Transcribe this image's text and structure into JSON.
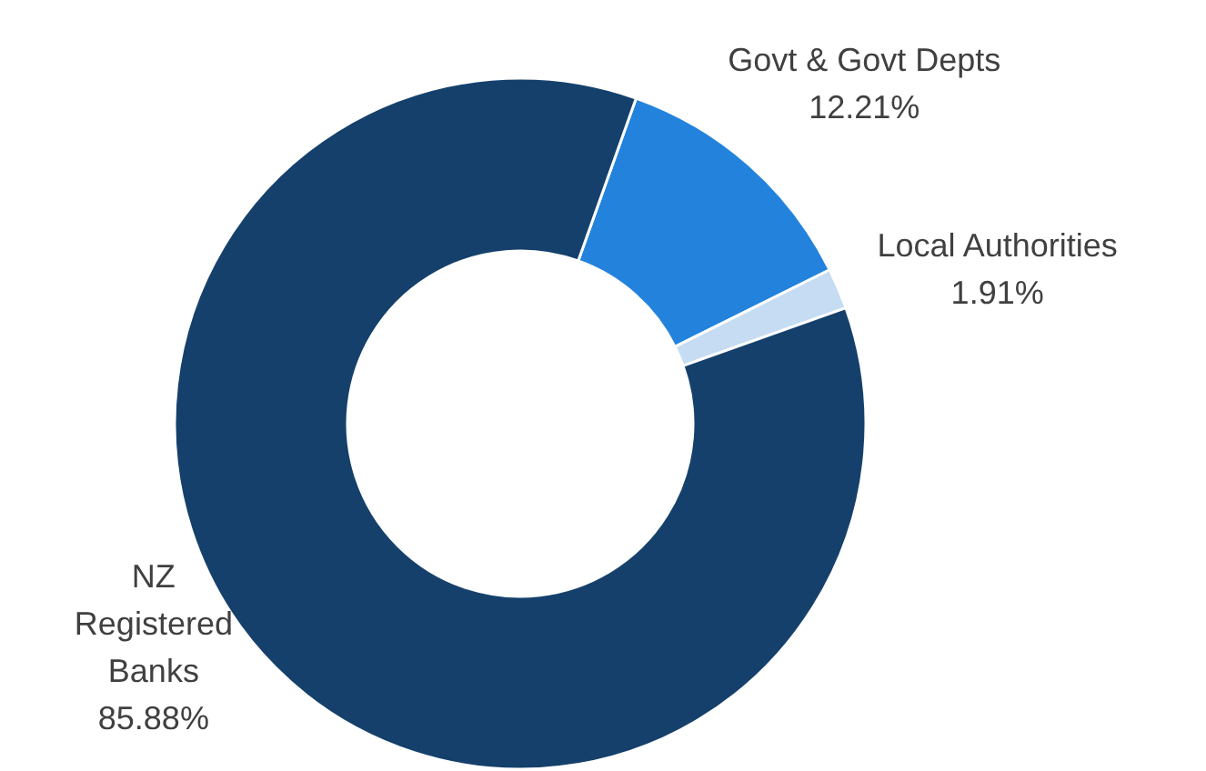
{
  "chart_data": {
    "type": "donut",
    "categories": [
      "Govt & Govt Depts",
      "Local Authorities",
      "NZ Registered Banks"
    ],
    "values": [
      12.21,
      1.91,
      85.88
    ],
    "value_labels": [
      "12.21%",
      "1.91%",
      "85.88%"
    ],
    "colors": [
      "#2383dc",
      "#c5dcf2",
      "#15406b"
    ]
  }
}
